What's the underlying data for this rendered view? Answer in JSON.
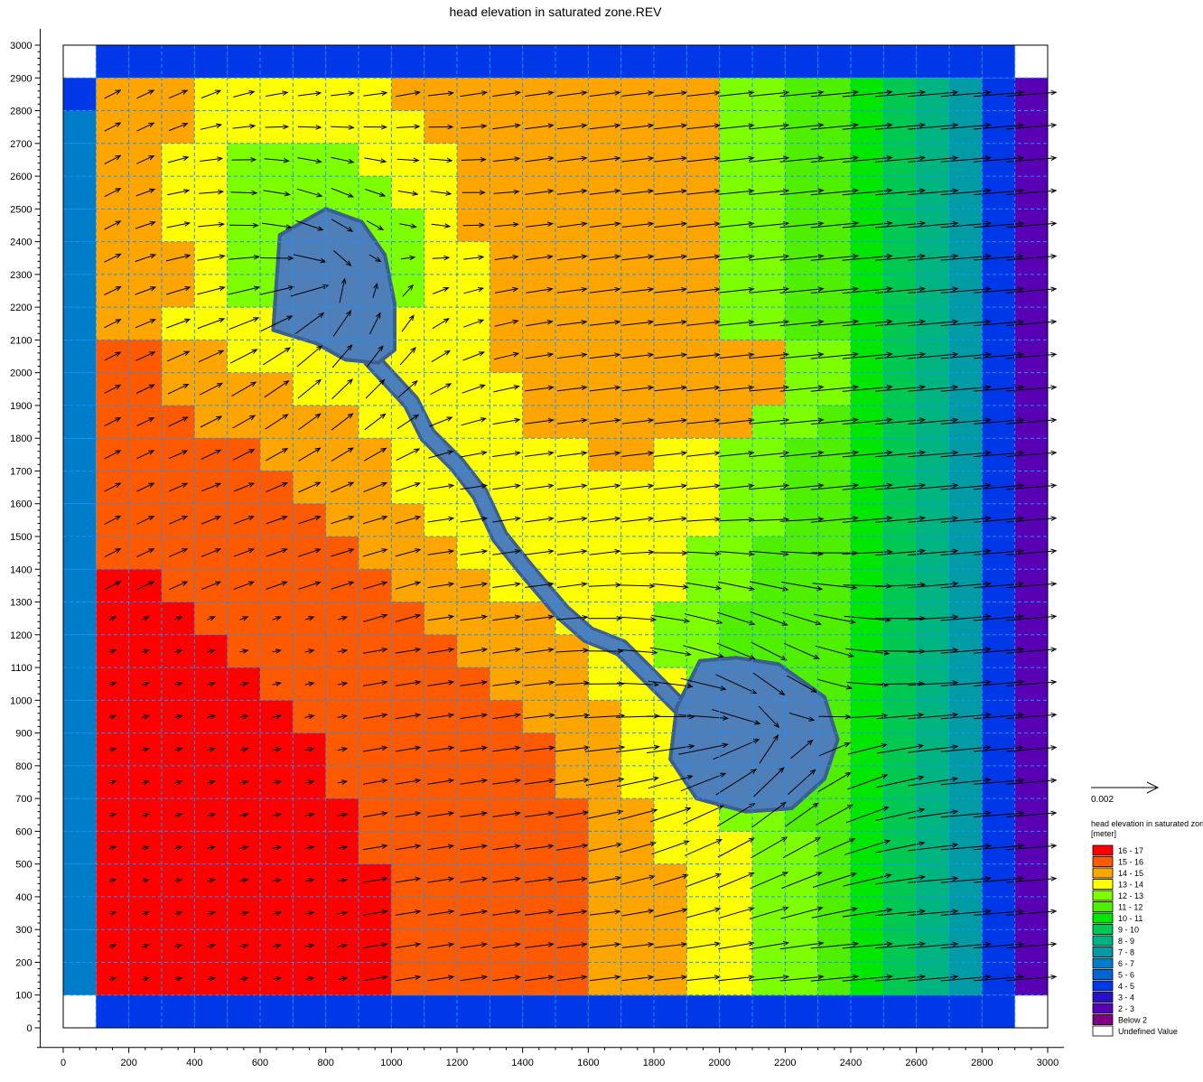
{
  "chart_data": {
    "type": "heatmap",
    "title": "head elevation in saturated zone.REV",
    "xlim": [
      0,
      3000
    ],
    "ylim": [
      0,
      3000
    ],
    "cell_size": 100,
    "x_ticks": [
      0,
      200,
      400,
      600,
      800,
      1000,
      1200,
      1400,
      1600,
      1800,
      2000,
      2200,
      2400,
      2600,
      2800,
      3000
    ],
    "y_ticks": [
      0,
      100,
      200,
      300,
      400,
      500,
      600,
      700,
      800,
      900,
      1000,
      1100,
      1200,
      1300,
      1400,
      1500,
      1600,
      1700,
      1800,
      1900,
      2000,
      2100,
      2200,
      2300,
      2400,
      2500,
      2600,
      2700,
      2800,
      2900,
      3000
    ],
    "grid": true,
    "legend_position": "bottom-right",
    "vector_scale_label": "0.002",
    "legend_title": "head elevation in saturated zone [meter]",
    "legend": [
      {
        "label": "16 - 17",
        "color": "#ff0000"
      },
      {
        "label": "15 - 16",
        "color": "#ff5a00"
      },
      {
        "label": "14 - 15",
        "color": "#ffa500"
      },
      {
        "label": "13 - 14",
        "color": "#ffff00"
      },
      {
        "label": "12 - 13",
        "color": "#7dff00"
      },
      {
        "label": "11 - 12",
        "color": "#50ef00"
      },
      {
        "label": "10 - 11",
        "color": "#00e600"
      },
      {
        "label": "9 - 10",
        "color": "#00c850"
      },
      {
        "label": "8 - 9",
        "color": "#00b482"
      },
      {
        "label": "7 - 8",
        "color": "#009ba5"
      },
      {
        "label": "6 - 7",
        "color": "#007dc8"
      },
      {
        "label": "5 - 6",
        "color": "#0064d2"
      },
      {
        "label": "4 - 5",
        "color": "#0037e6"
      },
      {
        "label": "3 - 4",
        "color": "#2810c8"
      },
      {
        "label": "2 - 3",
        "color": "#5a00b4"
      },
      {
        "label": "Below 2",
        "color": "#820082"
      },
      {
        "label": "Undefined Value",
        "color": "#ffffff"
      }
    ],
    "lakes": [
      [
        [
          660,
          2420
        ],
        [
          800,
          2500
        ],
        [
          910,
          2460
        ],
        [
          980,
          2360
        ],
        [
          1010,
          2210
        ],
        [
          1010,
          2070
        ],
        [
          960,
          2030
        ],
        [
          860,
          2040
        ],
        [
          770,
          2090
        ],
        [
          640,
          2130
        ],
        [
          660,
          2420
        ]
      ],
      [
        [
          1940,
          1120
        ],
        [
          2050,
          1130
        ],
        [
          2180,
          1110
        ],
        [
          2320,
          1010
        ],
        [
          2360,
          880
        ],
        [
          2320,
          760
        ],
        [
          2220,
          670
        ],
        [
          2080,
          660
        ],
        [
          1930,
          700
        ],
        [
          1850,
          820
        ],
        [
          1870,
          980
        ],
        [
          1940,
          1120
        ]
      ]
    ],
    "river": [
      [
        940,
        2040
      ],
      [
        1060,
        1910
      ],
      [
        1110,
        1810
      ],
      [
        1200,
        1720
      ],
      [
        1270,
        1630
      ],
      [
        1330,
        1500
      ],
      [
        1410,
        1400
      ],
      [
        1520,
        1270
      ],
      [
        1600,
        1200
      ],
      [
        1700,
        1160
      ],
      [
        1790,
        1070
      ],
      [
        1880,
        980
      ]
    ],
    "band_ranges": {
      "rows_y": [
        2800,
        2700,
        2600,
        2500,
        2400,
        2300,
        2200,
        2100,
        2000,
        1900,
        1800,
        1700,
        1600,
        1500,
        1400,
        1300,
        1200,
        1100,
        1000,
        900,
        800,
        700,
        600,
        500,
        400,
        300,
        200,
        100
      ],
      "level_codes": [
        "3344443333222111",
        "3334433333222111",
        "3344443333222111",
        "3344453333222111",
        "3344453333222111",
        "3344453333222111",
        "3344453333222111",
        "3344453333222111",
        "2334443333222111",
        "2234443333222111",
        "2223433333222111",
        "1223343333222111",
        "1223333433222111",
        "1222333433222111",
        "1222233433222111",
        "0122233343222111",
        "0112233343222111",
        "0012223343222111",
        "0012223343222111",
        "0012222343222111",
        "0011223434322111",
        "0011222344322111",
        "0001222344322111",
        "0001122234322111",
        "0000112234432111",
        "0000112223432111",
        "0000011223432111",
        "0000011223432111"
      ]
    }
  }
}
